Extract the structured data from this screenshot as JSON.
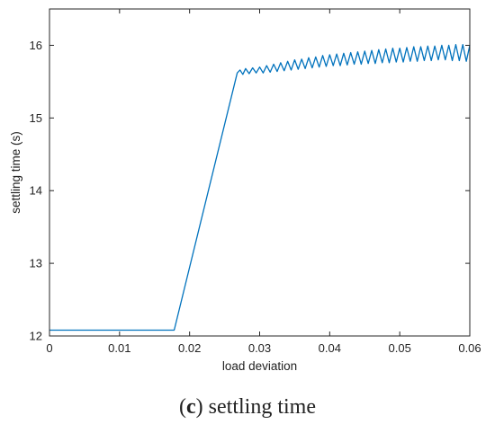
{
  "caption": {
    "letter": "c",
    "text": "settling time"
  },
  "chart_data": {
    "type": "line",
    "title": "",
    "xlabel": "load deviation",
    "ylabel": "settling time (s)",
    "xlim": [
      0,
      0.06
    ],
    "ylim": [
      12,
      16.5
    ],
    "x_ticks": [
      0,
      0.01,
      0.02,
      0.03,
      0.04,
      0.05,
      0.06
    ],
    "x_tick_labels": [
      "0",
      "0.01",
      "0.02",
      "0.03",
      "0.04",
      "0.05",
      "0.06"
    ],
    "y_ticks": [
      12,
      13,
      14,
      15,
      16
    ],
    "y_tick_labels": [
      "12",
      "13",
      "14",
      "15",
      "16"
    ],
    "grid": false,
    "line_color": "#0072BD",
    "series": [
      {
        "x": [
          0,
          0.0178,
          0.0268,
          0.0272,
          0.0276,
          0.028,
          0.0285,
          0.029,
          0.0295,
          0.03,
          0.0305,
          0.031,
          0.0315,
          0.032,
          0.0325,
          0.033,
          0.0335,
          0.034,
          0.0345,
          0.035,
          0.0355,
          0.036,
          0.0365,
          0.037,
          0.0375,
          0.038,
          0.0385,
          0.039,
          0.0395,
          0.04,
          0.0405,
          0.041,
          0.0415,
          0.042,
          0.0425,
          0.043,
          0.0435,
          0.044,
          0.0445,
          0.045,
          0.0455,
          0.046,
          0.0465,
          0.047,
          0.0475,
          0.048,
          0.0485,
          0.049,
          0.0495,
          0.05,
          0.0505,
          0.051,
          0.0515,
          0.052,
          0.0525,
          0.053,
          0.0535,
          0.054,
          0.0545,
          0.055,
          0.0555,
          0.056,
          0.0565,
          0.057,
          0.0575,
          0.058,
          0.0585,
          0.059,
          0.0595,
          0.06
        ],
        "y": [
          12.08,
          12.08,
          15.62,
          15.66,
          15.6,
          15.68,
          15.61,
          15.69,
          15.62,
          15.7,
          15.62,
          15.72,
          15.63,
          15.74,
          15.64,
          15.76,
          15.65,
          15.78,
          15.66,
          15.8,
          15.67,
          15.81,
          15.68,
          15.83,
          15.69,
          15.84,
          15.7,
          15.86,
          15.71,
          15.87,
          15.72,
          15.88,
          15.72,
          15.89,
          15.73,
          15.9,
          15.74,
          15.91,
          15.74,
          15.92,
          15.75,
          15.93,
          15.75,
          15.94,
          15.76,
          15.95,
          15.76,
          15.96,
          15.77,
          15.96,
          15.77,
          15.97,
          15.78,
          15.98,
          15.78,
          15.98,
          15.79,
          15.99,
          15.79,
          15.99,
          15.8,
          16.0,
          15.8,
          16.0,
          15.79,
          16.01,
          15.79,
          16.01,
          15.78,
          16.0
        ]
      }
    ]
  }
}
